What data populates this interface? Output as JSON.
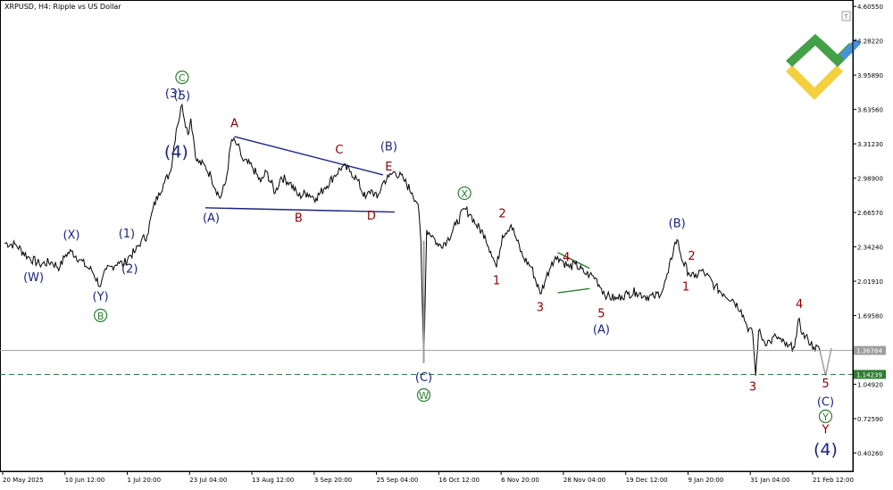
{
  "header": {
    "symbol_caption": "XRPUSD, H4:  Ripple vs US Dollar"
  },
  "colors": {
    "candle": "#000000",
    "wave_navy": "#1a237e",
    "wave_red": "#8b0000",
    "wave_green": "#2e7d32",
    "support_line": "#2e7d32",
    "current_price_line": "#9e9e9e",
    "logo_green": "#43a047",
    "logo_yellow": "#f4d03f",
    "logo_blue": "#4a90d9"
  },
  "icons": {
    "logo": "litefinance-logo-icon",
    "corner": "t-box-icon"
  },
  "chart_data": {
    "type": "line",
    "title": "XRPUSD, H4:  Ripple vs US Dollar",
    "xlabel": "",
    "ylabel": "",
    "ylim": [
      0.231,
      4.657
    ],
    "grid": false,
    "legend": "none",
    "x_ticks": [
      "20 May 2025",
      "10 Jun 12:00",
      "1 Jul 20:00",
      "23 Jul 04:00",
      "13 Aug 12:00",
      "3 Sep 20:00",
      "25 Sep 04:00",
      "16 Oct 12:00",
      "6 Nov 20:00",
      "28 Nov 04:00",
      "19 Dec 12:00",
      "9 Jan 20:00",
      "31 Jan 04:00",
      "21 Feb 12:00"
    ],
    "y_ticks": [
      "4.60550",
      "4.28220",
      "3.95890",
      "3.63560",
      "3.31230",
      "2.98900",
      "2.66570",
      "2.34240",
      "2.01910",
      "1.69580",
      "1.04920",
      "0.72590",
      "0.40260"
    ],
    "price_tags": [
      {
        "label": "1.36764",
        "value": 1.36764,
        "style": "current"
      },
      {
        "label": "1.14239",
        "value": 1.14239,
        "style": "support"
      }
    ],
    "series": [
      {
        "values": [
          [
            "20 May",
            2.38
          ],
          [
            "24 May",
            2.36
          ],
          [
            "28 May",
            2.25
          ],
          [
            "1 Jun",
            2.18
          ],
          [
            "5 Jun",
            2.2
          ],
          [
            "8 Jun",
            2.15
          ],
          [
            "10 Jun",
            2.27
          ],
          [
            "12 Jun",
            2.3
          ],
          [
            "15 Jun",
            2.22
          ],
          [
            "17 Jun",
            2.16
          ],
          [
            "19 Jun",
            2.12
          ],
          [
            "22 Jun",
            1.97
          ],
          [
            "24 Jun",
            2.13
          ],
          [
            "26 Jun",
            2.16
          ],
          [
            "28 Jun",
            2.2
          ],
          [
            "30 Jun",
            2.18
          ],
          [
            "2 Jul",
            2.26
          ],
          [
            "4 Jul",
            2.3
          ],
          [
            "6 Jul",
            2.4
          ],
          [
            "8 Jul",
            2.45
          ],
          [
            "10 Jul",
            2.7
          ],
          [
            "12 Jul",
            2.85
          ],
          [
            "14 Jul",
            2.95
          ],
          [
            "16 Jul",
            3.05
          ],
          [
            "18 Jul",
            3.45
          ],
          [
            "20 Jul",
            3.68
          ],
          [
            "22 Jul",
            3.4
          ],
          [
            "23 Jul",
            3.55
          ],
          [
            "25 Jul",
            3.15
          ],
          [
            "28 Jul",
            3.1
          ],
          [
            "30 Jul",
            3.0
          ],
          [
            "2 Aug",
            2.8
          ],
          [
            "4 Aug",
            2.95
          ],
          [
            "6 Aug",
            3.35
          ],
          [
            "8 Aug",
            3.3
          ],
          [
            "10 Aug",
            3.15
          ],
          [
            "13 Aug",
            3.1
          ],
          [
            "16 Aug",
            2.95
          ],
          [
            "18 Aug",
            3.05
          ],
          [
            "21 Aug",
            2.85
          ],
          [
            "23 Aug",
            3.0
          ],
          [
            "26 Aug",
            2.95
          ],
          [
            "29 Aug",
            2.82
          ],
          [
            "1 Sep",
            2.85
          ],
          [
            "4 Sep",
            2.8
          ],
          [
            "7 Sep",
            2.9
          ],
          [
            "10 Sep",
            3.0
          ],
          [
            "13 Sep",
            3.1
          ],
          [
            "16 Sep",
            3.05
          ],
          [
            "18 Sep",
            2.98
          ],
          [
            "21 Sep",
            2.8
          ],
          [
            "23 Sep",
            2.88
          ],
          [
            "25 Sep",
            2.8
          ],
          [
            "27 Sep",
            2.95
          ],
          [
            "29 Sep",
            3.0
          ],
          [
            "1 Oct",
            3.05
          ],
          [
            "4 Oct",
            2.98
          ],
          [
            "7 Oct",
            2.85
          ],
          [
            "9 Oct",
            2.75
          ],
          [
            "10 Oct",
            2.4
          ],
          [
            "11 Oct",
            1.25
          ],
          [
            "12 Oct",
            2.5
          ],
          [
            "14 Oct",
            2.45
          ],
          [
            "16 Oct",
            2.35
          ],
          [
            "19 Oct",
            2.4
          ],
          [
            "22 Oct",
            2.55
          ],
          [
            "25 Oct",
            2.7
          ],
          [
            "27 Oct",
            2.65
          ],
          [
            "29 Oct",
            2.55
          ],
          [
            "1 Nov",
            2.45
          ],
          [
            "3 Nov",
            2.3
          ],
          [
            "5 Nov",
            2.15
          ],
          [
            "7 Nov",
            2.45
          ],
          [
            "10 Nov",
            2.55
          ],
          [
            "12 Nov",
            2.4
          ],
          [
            "14 Nov",
            2.25
          ],
          [
            "17 Nov",
            2.15
          ],
          [
            "20 Nov",
            1.9
          ],
          [
            "22 Nov",
            2.05
          ],
          [
            "24 Nov",
            2.2
          ],
          [
            "26 Nov",
            2.25
          ],
          [
            "28 Nov",
            2.2
          ],
          [
            "30 Nov",
            2.15
          ],
          [
            "2 Dec",
            2.18
          ],
          [
            "5 Dec",
            2.1
          ],
          [
            "7 Dec",
            2.08
          ],
          [
            "9 Dec",
            2.05
          ],
          [
            "11 Dec",
            1.95
          ],
          [
            "13 Dec",
            1.88
          ],
          [
            "16 Dec",
            1.85
          ],
          [
            "18 Dec",
            1.88
          ],
          [
            "20 Dec",
            1.9
          ],
          [
            "23 Dec",
            1.92
          ],
          [
            "26 Dec",
            1.88
          ],
          [
            "29 Dec",
            1.87
          ],
          [
            "1 Jan",
            1.93
          ],
          [
            "3 Jan",
            2.1
          ],
          [
            "5 Jan",
            2.35
          ],
          [
            "6 Jan",
            2.41
          ],
          [
            "8 Jan",
            2.2
          ],
          [
            "10 Jan",
            2.1
          ],
          [
            "12 Jan",
            2.05
          ],
          [
            "14 Jan",
            2.12
          ],
          [
            "16 Jan",
            2.08
          ],
          [
            "19 Jan",
            1.97
          ],
          [
            "22 Jan",
            1.9
          ],
          [
            "25 Jan",
            1.85
          ],
          [
            "28 Jan",
            1.75
          ],
          [
            "30 Jan",
            1.6
          ],
          [
            "1 Feb",
            1.52
          ],
          [
            "2 Feb",
            1.13
          ],
          [
            "3 Feb",
            1.55
          ],
          [
            "5 Feb",
            1.45
          ],
          [
            "7 Feb",
            1.45
          ],
          [
            "9 Feb",
            1.5
          ],
          [
            "11 Feb",
            1.45
          ],
          [
            "13 Feb",
            1.4
          ],
          [
            "15 Feb",
            1.4
          ],
          [
            "16 Feb",
            1.5
          ],
          [
            "17 Feb",
            1.67
          ],
          [
            "18 Feb",
            1.52
          ],
          [
            "20 Feb",
            1.47
          ],
          [
            "22 Feb",
            1.4
          ],
          [
            "24 Feb",
            1.37
          ]
        ]
      }
    ],
    "projection": [
      [
        "24 Feb",
        1.37
      ],
      [
        "26 Feb",
        1.13
      ],
      [
        "28 Feb",
        1.39
      ]
    ],
    "annotations": [
      {
        "text": "(W)",
        "x": "30 May",
        "y": 2.02,
        "color": "navy",
        "circled": false
      },
      {
        "text": "(X)",
        "x": "12 Jun",
        "y": 2.42,
        "color": "navy",
        "circled": false
      },
      {
        "text": "(Y)",
        "x": "22 Jun",
        "y": 1.84,
        "color": "navy",
        "circled": false
      },
      {
        "text": "B",
        "x": "22 Jun",
        "y": 1.66,
        "color": "green",
        "circled": true
      },
      {
        "text": "(1)",
        "x": "1 Jul",
        "y": 2.43,
        "color": "navy",
        "circled": false
      },
      {
        "text": "(2)",
        "x": "2 Jul",
        "y": 2.1,
        "color": "navy",
        "circled": false
      },
      {
        "text": "(3)",
        "x": "17 Jul",
        "y": 3.75,
        "color": "navy",
        "circled": false
      },
      {
        "text": "(4)",
        "x": "18 Jul",
        "y": 3.2,
        "color": "navy",
        "circled": false
      },
      {
        "text": "(5)",
        "x": "20 Jul",
        "y": 3.73,
        "color": "navy",
        "circled": false
      },
      {
        "text": "C",
        "x": "20 Jul",
        "y": 3.9,
        "color": "green",
        "circled": true
      },
      {
        "text": "A",
        "x": "7 Aug",
        "y": 3.47,
        "color": "red",
        "circled": false
      },
      {
        "text": "(A)",
        "x": "30 Jul",
        "y": 2.58,
        "color": "navy",
        "circled": false
      },
      {
        "text": "B",
        "x": "29 Aug",
        "y": 2.58,
        "color": "red",
        "circled": false
      },
      {
        "text": "C",
        "x": "12 Sep",
        "y": 3.22,
        "color": "red",
        "circled": false
      },
      {
        "text": "D",
        "x": "23 Sep",
        "y": 2.6,
        "color": "red",
        "circled": false
      },
      {
        "text": "E",
        "x": "29 Sep",
        "y": 3.06,
        "color": "red",
        "circled": false
      },
      {
        "text": "(B)",
        "x": "29 Sep",
        "y": 3.25,
        "color": "navy",
        "circled": false
      },
      {
        "text": "(C)",
        "x": "11 Oct",
        "y": 1.08,
        "color": "navy",
        "circled": false
      },
      {
        "text": "W",
        "x": "11 Oct",
        "y": 0.91,
        "color": "green",
        "circled": true
      },
      {
        "text": "X",
        "x": "25 Oct",
        "y": 2.81,
        "color": "green",
        "circled": true
      },
      {
        "text": "2",
        "x": "7 Nov",
        "y": 2.62,
        "color": "red",
        "circled": false
      },
      {
        "text": "1",
        "x": "5 Nov",
        "y": 1.99,
        "color": "red",
        "circled": false
      },
      {
        "text": "3",
        "x": "20 Nov",
        "y": 1.74,
        "color": "red",
        "circled": false
      },
      {
        "text": "4",
        "x": "29 Nov",
        "y": 2.21,
        "color": "red",
        "circled": false
      },
      {
        "text": "5",
        "x": "11 Dec",
        "y": 1.68,
        "color": "red",
        "circled": false
      },
      {
        "text": "(A)",
        "x": "11 Dec",
        "y": 1.53,
        "color": "navy",
        "circled": false
      },
      {
        "text": "(B)",
        "x": "6 Jan",
        "y": 2.53,
        "color": "navy",
        "circled": false
      },
      {
        "text": "2",
        "x": "11 Jan",
        "y": 2.22,
        "color": "red",
        "circled": false
      },
      {
        "text": "1",
        "x": "9 Jan",
        "y": 1.93,
        "color": "red",
        "circled": false
      },
      {
        "text": "3",
        "x": "1 Feb",
        "y": 0.99,
        "color": "red",
        "circled": false
      },
      {
        "text": "4",
        "x": "17 Feb",
        "y": 1.77,
        "color": "red",
        "circled": false
      },
      {
        "text": "5",
        "x": "26 Feb",
        "y": 1.02,
        "color": "red",
        "circled": false
      },
      {
        "text": "(C)",
        "x": "26 Feb",
        "y": 0.85,
        "color": "navy",
        "circled": false
      },
      {
        "text": "Y",
        "x": "26 Feb",
        "y": 0.71,
        "color": "green",
        "circled": true
      },
      {
        "text": "Y",
        "x": "26 Feb",
        "y": 0.59,
        "color": "red",
        "circled": false
      },
      {
        "text": "(4)",
        "x": "26 Feb",
        "y": 0.4,
        "color": "navy",
        "circled": false
      }
    ],
    "trendlines": [
      {
        "color": "navy",
        "from": [
          "7 Aug",
          3.38
        ],
        "to": [
          "27 Sep",
          3.02
        ]
      },
      {
        "color": "navy",
        "from": [
          "28 Jul",
          2.71
        ],
        "to": [
          "1 Oct",
          2.67
        ]
      },
      {
        "color": "green",
        "from": [
          "26 Nov",
          2.29
        ],
        "to": [
          "7 Dec",
          2.14
        ]
      },
      {
        "color": "green",
        "from": [
          "26 Nov",
          1.91
        ],
        "to": [
          "7 Dec",
          1.95
        ]
      }
    ]
  }
}
